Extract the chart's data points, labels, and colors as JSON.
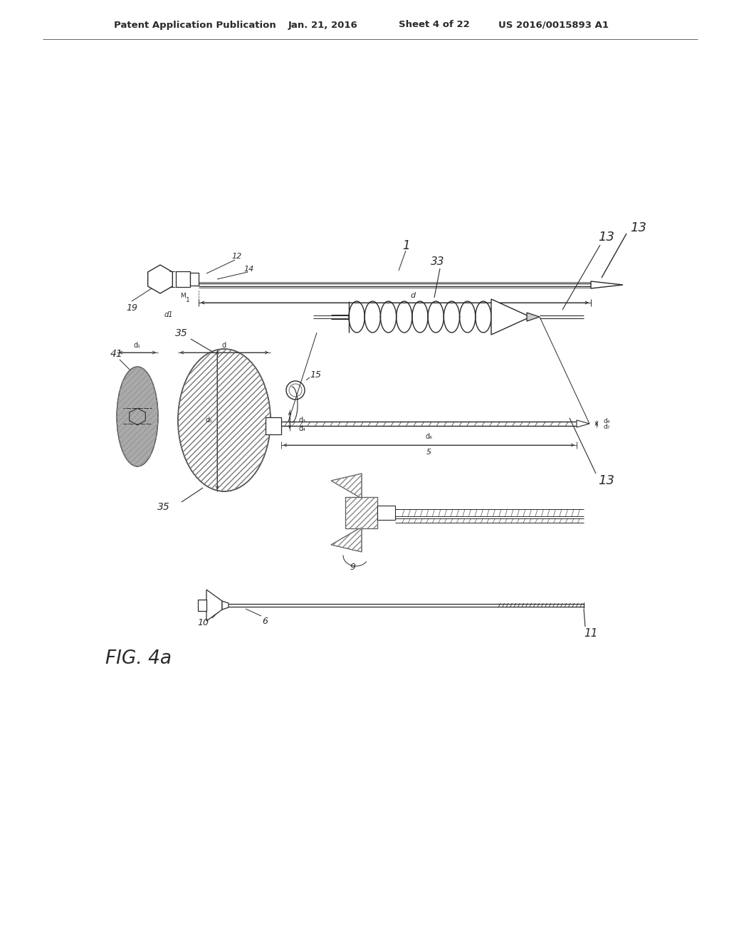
{
  "bg_color": "#ffffff",
  "header_text": "Patent Application Publication",
  "header_date": "Jan. 21, 2016",
  "header_sheet": "Sheet 4 of 22",
  "header_patent": "US 2016/0015893 A1",
  "fig_label": "FIG. 4a",
  "line_color": "#2a2a2a",
  "gray_fill": "#aaaaaa",
  "hatch_gray": "#888888"
}
